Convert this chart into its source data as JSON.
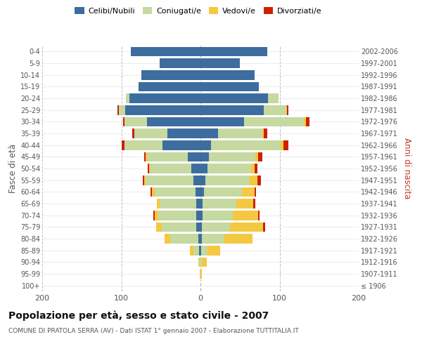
{
  "age_groups": [
    "100+",
    "95-99",
    "90-94",
    "85-89",
    "80-84",
    "75-79",
    "70-74",
    "65-69",
    "60-64",
    "55-59",
    "50-54",
    "45-49",
    "40-44",
    "35-39",
    "30-34",
    "25-29",
    "20-24",
    "15-19",
    "10-14",
    "5-9",
    "0-4"
  ],
  "birth_years": [
    "≤ 1906",
    "1907-1911",
    "1912-1916",
    "1917-1921",
    "1922-1926",
    "1927-1931",
    "1932-1936",
    "1937-1941",
    "1942-1946",
    "1947-1951",
    "1952-1956",
    "1957-1961",
    "1962-1966",
    "1967-1971",
    "1972-1976",
    "1977-1981",
    "1982-1986",
    "1987-1991",
    "1992-1996",
    "1997-2001",
    "2002-2006"
  ],
  "male": {
    "celibi": [
      0,
      0,
      0,
      2,
      3,
      5,
      5,
      5,
      6,
      9,
      12,
      16,
      48,
      42,
      68,
      95,
      90,
      78,
      75,
      52,
      88
    ],
    "coniugati": [
      0,
      1,
      2,
      7,
      35,
      44,
      48,
      47,
      52,
      60,
      52,
      52,
      48,
      42,
      28,
      8,
      4,
      0,
      0,
      0,
      0
    ],
    "vedovi": [
      0,
      0,
      1,
      4,
      7,
      7,
      5,
      3,
      3,
      2,
      1,
      1,
      0,
      0,
      0,
      0,
      0,
      0,
      0,
      0,
      0
    ],
    "divorziati": [
      0,
      0,
      0,
      0,
      0,
      0,
      2,
      0,
      2,
      2,
      2,
      2,
      4,
      2,
      2,
      2,
      0,
      0,
      0,
      0,
      0
    ]
  },
  "female": {
    "nubili": [
      0,
      0,
      0,
      1,
      2,
      2,
      3,
      3,
      4,
      6,
      9,
      11,
      13,
      22,
      55,
      80,
      85,
      74,
      68,
      50,
      84
    ],
    "coniugate": [
      0,
      0,
      2,
      8,
      28,
      35,
      38,
      42,
      48,
      56,
      55,
      58,
      88,
      56,
      76,
      28,
      14,
      0,
      0,
      0,
      0
    ],
    "vedove": [
      0,
      2,
      6,
      16,
      36,
      42,
      32,
      22,
      16,
      10,
      4,
      4,
      4,
      2,
      2,
      1,
      0,
      0,
      0,
      0,
      0
    ],
    "divorziate": [
      0,
      0,
      0,
      0,
      0,
      3,
      2,
      2,
      2,
      4,
      4,
      5,
      6,
      4,
      5,
      2,
      0,
      0,
      0,
      0,
      0
    ]
  },
  "colors": {
    "celibi": "#3d6d9e",
    "coniugati": "#c5d9a0",
    "vedovi": "#f5c842",
    "divorziati": "#cc2200"
  },
  "xlim": 200,
  "title": "Popolazione per età, sesso e stato civile - 2007",
  "subtitle": "COMUNE DI PRATOLA SERRA (AV) - Dati ISTAT 1° gennaio 2007 - Elaborazione TUTTITALIA.IT",
  "ylabel_left": "Fasce di età",
  "ylabel_right": "Anni di nascita",
  "background_color": "#ffffff",
  "grid_color": "#bbbbbb"
}
